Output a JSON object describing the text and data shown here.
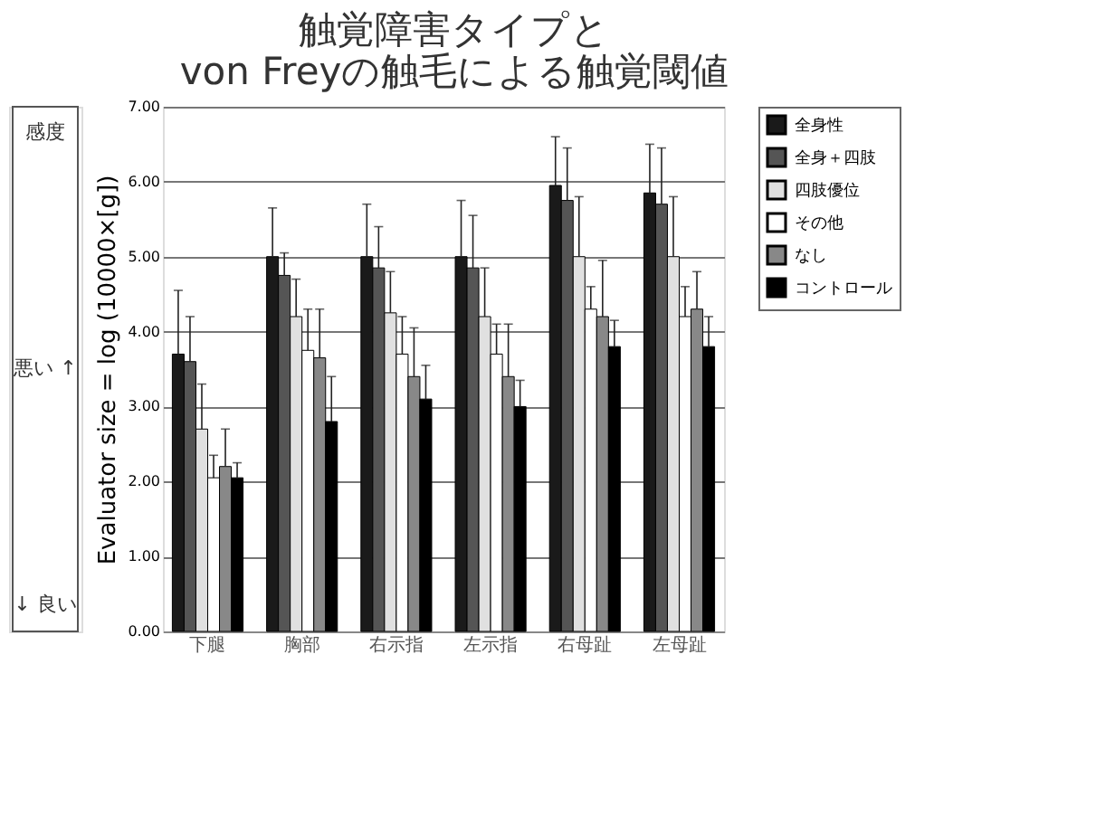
{
  "chart_data": {
    "type": "bar",
    "title": [
      "触覚障害タイプと",
      "von Freyの触毛による触覚閾値"
    ],
    "ylabel": "Evaluator size = log (10000×[g])",
    "categories": [
      "下腿",
      "胸部",
      "右示指",
      "左示指",
      "右母趾",
      "左母趾"
    ],
    "series": [
      {
        "name": "全身性",
        "color": "#1a1a1a",
        "values": [
          3.7,
          5.0,
          5.0,
          5.0,
          5.95,
          5.85
        ],
        "errors": [
          [
            3.7,
            4.55
          ],
          [
            5.0,
            5.65
          ],
          [
            5.0,
            5.7
          ],
          [
            5.0,
            5.75
          ],
          [
            5.95,
            6.6
          ],
          [
            5.85,
            6.5
          ]
        ]
      },
      {
        "name": "全身＋四肢",
        "color": "#555555",
        "values": [
          3.6,
          4.75,
          4.85,
          4.85,
          5.75,
          5.7
        ],
        "errors": [
          [
            3.6,
            4.2
          ],
          [
            4.75,
            5.05
          ],
          [
            4.85,
            5.4
          ],
          [
            4.85,
            5.55
          ],
          [
            5.75,
            6.45
          ],
          [
            5.7,
            6.45
          ]
        ]
      },
      {
        "name": "四肢優位",
        "color": "#e0e0e0",
        "values": [
          2.7,
          4.2,
          4.25,
          4.2,
          5.0,
          5.0
        ],
        "errors": [
          [
            2.7,
            3.3
          ],
          [
            4.2,
            4.7
          ],
          [
            4.25,
            4.8
          ],
          [
            4.2,
            4.85
          ],
          [
            5.0,
            5.8
          ],
          [
            5.0,
            5.8
          ]
        ]
      },
      {
        "name": "その他",
        "color": "#ffffff",
        "values": [
          2.05,
          3.75,
          3.7,
          3.7,
          4.3,
          4.2
        ],
        "errors": [
          [
            2.05,
            2.35
          ],
          [
            3.75,
            4.3
          ],
          [
            3.7,
            4.2
          ],
          [
            3.7,
            4.1
          ],
          [
            4.3,
            4.6
          ],
          [
            4.2,
            4.6
          ]
        ]
      },
      {
        "name": "なし",
        "color": "#888888",
        "values": [
          2.2,
          3.65,
          3.4,
          3.4,
          4.2,
          4.3
        ],
        "errors": [
          [
            2.2,
            2.7
          ],
          [
            3.65,
            4.3
          ],
          [
            3.4,
            4.05
          ],
          [
            3.4,
            4.1
          ],
          [
            4.2,
            4.95
          ],
          [
            4.3,
            4.8
          ]
        ]
      },
      {
        "name": "コントロール",
        "color": "#000000",
        "values": [
          2.05,
          2.8,
          3.1,
          3.0,
          3.8,
          3.8
        ],
        "errors": [
          [
            2.05,
            2.25
          ],
          [
            2.8,
            3.4
          ],
          [
            3.1,
            3.55
          ],
          [
            3.0,
            3.35
          ],
          [
            3.8,
            4.15
          ],
          [
            3.8,
            4.2
          ]
        ]
      }
    ],
    "ylim": [
      0,
      7
    ],
    "yticks": [
      {
        "value": 0,
        "label": "0.00"
      },
      {
        "value": 1,
        "label": "1.00"
      },
      {
        "value": 2,
        "label": "2.00"
      },
      {
        "value": 3,
        "label": "3.00"
      },
      {
        "value": 4,
        "label": "4.00"
      },
      {
        "value": 5,
        "label": "5.00"
      },
      {
        "value": 6,
        "label": "6.00"
      },
      {
        "value": 7,
        "label": "7.00"
      }
    ],
    "grid": "y",
    "legend": "right",
    "annotations": [
      "感度",
      "悪い ↑",
      "↓ 良い"
    ]
  }
}
